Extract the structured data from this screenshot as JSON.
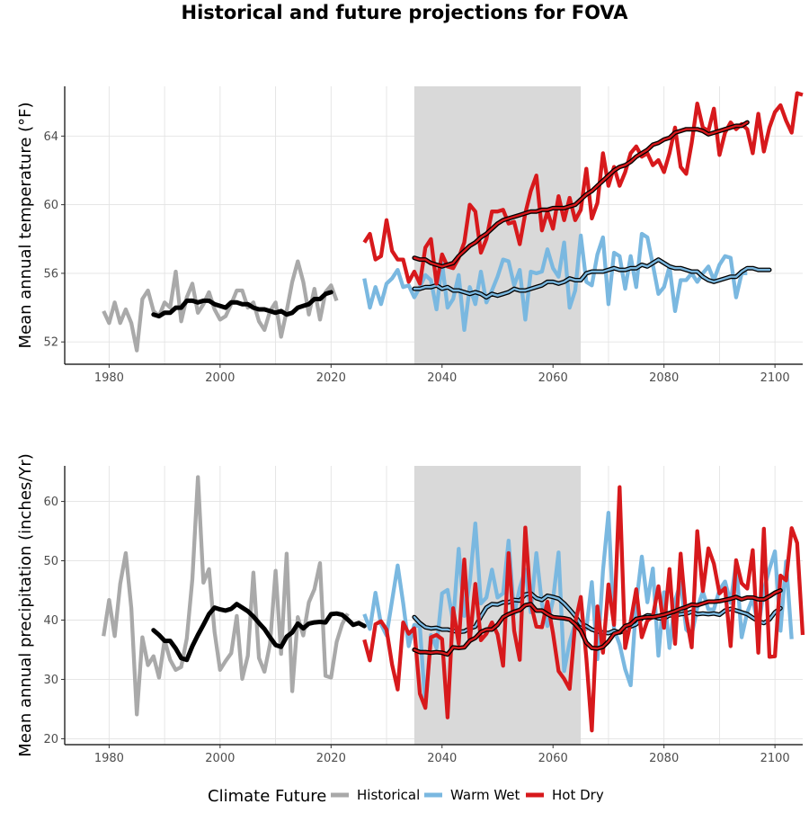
{
  "title": "Historical and future projections for FOVA",
  "legend": {
    "title": "Climate Future",
    "items": [
      {
        "label": "Historical",
        "color": "#a9a9a9"
      },
      {
        "label": "Warm Wet",
        "color": "#7ab8e0"
      },
      {
        "label": "Hot Dry",
        "color": "#d7191c"
      }
    ]
  },
  "chart_data": [
    {
      "type": "line",
      "ylabel": "Mean annual temperature (°F)",
      "xlim": [
        1972,
        2105
      ],
      "ylim": [
        50.7,
        66.9
      ],
      "xticks": [
        1980,
        2000,
        2020,
        2040,
        2060,
        2080,
        2100
      ],
      "yticks": [
        52,
        56,
        60,
        64
      ],
      "grid": true,
      "shaded_period": [
        2035,
        2065
      ],
      "series": [
        {
          "name": "Historical",
          "color": "#a9a9a9",
          "x_start": 1979,
          "values": [
            53.8,
            53.1,
            54.3,
            53.1,
            53.9,
            53.1,
            51.5,
            54.5,
            55.0,
            53.8,
            53.5,
            54.3,
            54.0,
            56.1,
            53.2,
            54.6,
            55.4,
            53.7,
            54.2,
            54.9,
            53.9,
            53.3,
            53.5,
            54.2,
            55.0,
            55.0,
            54.0,
            54.3,
            53.2,
            52.7,
            53.8,
            54.3,
            52.3,
            53.8,
            55.5,
            56.7,
            55.5,
            53.6,
            55.1,
            53.3,
            54.9,
            55.3,
            54.4
          ]
        },
        {
          "name": "Historical (smoothed)",
          "color": "#000000",
          "smoothed": true,
          "x_start": 1988,
          "values": [
            53.6,
            53.5,
            53.7,
            53.7,
            54.0,
            54.0,
            54.4,
            54.4,
            54.3,
            54.4,
            54.4,
            54.2,
            54.1,
            54.0,
            54.3,
            54.3,
            54.2,
            54.2,
            54.0,
            53.9,
            53.9,
            53.8,
            53.7,
            53.8,
            53.6,
            53.7,
            54.0,
            54.1,
            54.2,
            54.5,
            54.5,
            54.8,
            54.9
          ]
        },
        {
          "name": "Warm Wet",
          "color": "#7ab8e0",
          "x_start": 2026,
          "values": [
            55.7,
            54.0,
            55.2,
            54.2,
            55.4,
            55.7,
            56.2,
            55.2,
            55.3,
            54.6,
            55.2,
            55.9,
            55.6,
            53.9,
            56.6,
            54.0,
            54.5,
            55.9,
            52.7,
            55.2,
            54.2,
            56.1,
            54.3,
            55.0,
            55.8,
            56.8,
            56.7,
            55.3,
            56.2,
            53.3,
            56.1,
            56.0,
            56.1,
            57.4,
            56.3,
            55.8,
            57.8,
            54.0,
            55.0,
            58.2,
            55.5,
            55.3,
            57.1,
            58.1,
            54.2,
            57.2,
            57.0,
            55.1,
            57.0,
            55.2,
            58.3,
            58.1,
            56.5,
            54.8,
            55.2,
            56.4,
            53.8,
            55.6,
            55.6,
            56.0,
            55.5,
            56.0,
            56.4,
            55.6,
            56.5,
            57.0,
            56.9,
            54.6,
            56.0,
            56.0
          ]
        },
        {
          "name": "Warm Wet (smoothed)",
          "color": "#7ab8e0",
          "smoothed": true,
          "x_start": 2035,
          "values": [
            55.1,
            55.1,
            55.2,
            55.2,
            55.3,
            55.1,
            55.2,
            55.0,
            55.0,
            54.9,
            54.8,
            54.9,
            54.8,
            54.6,
            54.8,
            54.7,
            54.8,
            54.9,
            55.1,
            55.0,
            55.0,
            55.1,
            55.2,
            55.3,
            55.5,
            55.5,
            55.4,
            55.5,
            55.7,
            55.6,
            55.6,
            56.0,
            56.1,
            56.1,
            56.1,
            56.2,
            56.3,
            56.2,
            56.2,
            56.3,
            56.3,
            56.5,
            56.4,
            56.6,
            56.8,
            56.6,
            56.4,
            56.3,
            56.3,
            56.2,
            56.1,
            56.1,
            55.8,
            55.6,
            55.5,
            55.6,
            55.7,
            55.8,
            55.8,
            56.1,
            56.3,
            56.3,
            56.2,
            56.2,
            56.2
          ]
        },
        {
          "name": "Hot Dry",
          "color": "#d7191c",
          "x_start": 2026,
          "values": [
            57.8,
            58.3,
            56.8,
            57.0,
            59.1,
            57.3,
            56.8,
            56.8,
            55.5,
            56.1,
            55.4,
            57.5,
            58.0,
            55.4,
            57.1,
            56.4,
            56.3,
            56.9,
            57.8,
            60.0,
            59.6,
            57.2,
            58.0,
            59.6,
            59.6,
            59.7,
            58.9,
            59.0,
            57.7,
            59.5,
            60.8,
            61.7,
            58.5,
            59.6,
            58.6,
            60.5,
            59.1,
            60.4,
            59.1,
            59.7,
            62.1,
            59.2,
            60.1,
            63.0,
            61.1,
            62.2,
            61.1,
            61.9,
            63.0,
            63.4,
            62.8,
            63.0,
            62.3,
            62.6,
            61.9,
            63.0,
            64.5,
            62.2,
            61.8,
            63.6,
            65.9,
            64.5,
            64.3,
            65.6,
            62.9,
            64.2,
            64.8,
            64.4,
            64.7,
            64.4,
            63.0,
            65.3,
            63.1,
            64.5,
            65.4,
            65.8,
            64.9,
            64.2,
            66.5,
            66.4
          ]
        },
        {
          "name": "Hot Dry (smoothed)",
          "color": "#d7191c",
          "smoothed": true,
          "x_start": 2035,
          "values": [
            56.9,
            56.8,
            56.8,
            56.6,
            56.5,
            56.4,
            56.5,
            56.6,
            57.0,
            57.3,
            57.6,
            57.8,
            58.1,
            58.3,
            58.6,
            58.9,
            59.1,
            59.2,
            59.3,
            59.4,
            59.5,
            59.6,
            59.6,
            59.7,
            59.7,
            59.8,
            59.8,
            59.8,
            59.9,
            60.0,
            60.3,
            60.6,
            60.8,
            61.1,
            61.4,
            61.7,
            62.0,
            62.2,
            62.3,
            62.5,
            62.8,
            63.0,
            63.2,
            63.5,
            63.6,
            63.8,
            63.9,
            64.2,
            64.3,
            64.4,
            64.4,
            64.4,
            64.3,
            64.1,
            64.2,
            64.3,
            64.4,
            64.5,
            64.6,
            64.6,
            64.8
          ]
        }
      ]
    },
    {
      "type": "line",
      "ylabel": "Mean annual precipitation (inches/Yr)",
      "xlim": [
        1972,
        2105
      ],
      "ylim": [
        19,
        66
      ],
      "xticks": [
        1980,
        2000,
        2020,
        2040,
        2060,
        2080,
        2100
      ],
      "yticks": [
        20,
        30,
        40,
        50,
        60
      ],
      "grid": true,
      "shaded_period": [
        2035,
        2065
      ],
      "series": [
        {
          "name": "Historical",
          "color": "#a9a9a9",
          "x_start": 1979,
          "values": [
            37.3,
            43.4,
            37.3,
            46.1,
            51.3,
            42.0,
            24.1,
            37.1,
            32.4,
            33.9,
            30.3,
            36.6,
            33.3,
            31.6,
            32.1,
            36.9,
            46.9,
            64.1,
            46.3,
            48.6,
            38.0,
            31.6,
            33.1,
            34.4,
            40.7,
            30.1,
            34.0,
            48.0,
            33.6,
            31.3,
            36.0,
            48.3,
            34.3,
            51.2,
            28.0,
            40.5,
            37.4,
            43.0,
            45.2,
            49.6,
            30.6,
            30.3,
            36.3,
            39.3,
            41.1
          ]
        },
        {
          "name": "Historical (smoothed)",
          "color": "#000000",
          "smoothed": true,
          "x_start": 1988,
          "values": [
            38.3,
            37.5,
            36.5,
            36.5,
            35.2,
            33.6,
            33.3,
            35.6,
            37.5,
            39.2,
            41.0,
            42.1,
            41.8,
            41.6,
            41.9,
            42.7,
            42.1,
            41.5,
            40.6,
            39.5,
            38.5,
            37.1,
            35.8,
            35.5,
            37.2,
            37.9,
            39.4,
            38.6,
            39.4,
            39.6,
            39.7,
            39.6,
            41.0,
            41.1,
            40.9,
            40.1,
            39.2,
            39.5,
            39.0
          ]
        },
        {
          "name": "Warm Wet",
          "color": "#7ab8e0",
          "x_start": 2026,
          "values": [
            41.0,
            38.5,
            44.6,
            39.3,
            37.4,
            43.3,
            49.2,
            42.9,
            35.6,
            39.2,
            38.9,
            25.4,
            37.5,
            35.3,
            44.5,
            45.1,
            39.7,
            52.0,
            40.7,
            46.3,
            56.3,
            42.8,
            43.8,
            48.5,
            43.8,
            44.5,
            53.4,
            41.0,
            45.4,
            48.5,
            41.3,
            51.3,
            42.7,
            39.0,
            43.4,
            51.4,
            31.4,
            36.3,
            39.5,
            39.0,
            38.5,
            46.4,
            33.4,
            48.3,
            58.1,
            38.5,
            35.9,
            31.7,
            29.0,
            42.8,
            50.7,
            43.0,
            48.7,
            34.0,
            44.7,
            35.3,
            43.3,
            46.3,
            38.4,
            37.5,
            42.0,
            44.8,
            41.8,
            41.8,
            45.1,
            46.5,
            42.9,
            49.7,
            37.1,
            41.3,
            43.7,
            38.7,
            45.1,
            48.6,
            51.6,
            38.2,
            49.9,
            36.8
          ]
        },
        {
          "name": "Warm Wet (smoothed)",
          "color": "#7ab8e0",
          "smoothed": true,
          "x_start": 2035,
          "values": [
            40.5,
            39.5,
            38.8,
            38.6,
            38.7,
            38.4,
            38.4,
            38.2,
            38.0,
            38.1,
            38.6,
            38.9,
            40.6,
            42.1,
            42.7,
            42.6,
            43.0,
            43.0,
            43.4,
            43.3,
            44.3,
            44.5,
            43.7,
            43.4,
            44.1,
            43.9,
            43.6,
            42.8,
            41.8,
            40.7,
            39.3,
            39.0,
            38.4,
            38.1,
            37.9,
            37.8,
            38.2,
            37.9,
            38.3,
            38.9,
            39.3,
            40.3,
            40.8,
            40.7,
            40.3,
            40.3,
            40.8,
            40.8,
            41.0,
            41.1,
            41.4,
            41.0,
            41.1,
            41.0,
            41.1,
            40.9,
            41.6,
            41.9,
            41.6,
            41.3,
            41.0,
            40.4,
            39.8,
            39.5,
            40.1,
            41.3,
            42.0
          ]
        },
        {
          "name": "Hot Dry",
          "color": "#d7191c",
          "x_start": 2026,
          "values": [
            36.7,
            33.2,
            39.3,
            39.8,
            38.4,
            32.5,
            28.3,
            39.6,
            37.7,
            38.6,
            27.6,
            25.2,
            37.1,
            37.5,
            36.8,
            23.6,
            42.0,
            36.0,
            50.2,
            36.4,
            46.1,
            36.6,
            37.7,
            39.6,
            37.6,
            32.3,
            51.3,
            38.2,
            33.3,
            55.6,
            42.8,
            38.9,
            38.8,
            43.1,
            37.8,
            31.4,
            30.1,
            28.4,
            39.5,
            43.9,
            33.6,
            21.4,
            42.3,
            34.5,
            46.0,
            39.2,
            62.4,
            35.3,
            39.7,
            45.2,
            37.1,
            39.9,
            40.6,
            45.7,
            38.7,
            48.6,
            36.0,
            51.2,
            40.6,
            35.4,
            55.0,
            44.9,
            52.1,
            49.5,
            44.5,
            45.4,
            35.6,
            50.1,
            46.2,
            45.3,
            51.8,
            34.5,
            55.4,
            33.8,
            33.9,
            47.5,
            46.7,
            55.5,
            53.0,
            37.5
          ]
        },
        {
          "name": "Hot Dry (smoothed)",
          "color": "#d7191c",
          "smoothed": true,
          "x_start": 2035,
          "values": [
            35.0,
            34.6,
            34.6,
            34.5,
            34.6,
            34.5,
            34.2,
            35.4,
            35.3,
            35.4,
            36.5,
            37.0,
            38.0,
            38.4,
            38.4,
            39.2,
            40.5,
            41.0,
            41.4,
            41.7,
            42.5,
            42.7,
            41.6,
            41.6,
            41.0,
            40.5,
            40.4,
            40.3,
            40.1,
            39.3,
            38.2,
            36.2,
            35.3,
            35.2,
            35.5,
            36.4,
            37.7,
            38.0,
            39.0,
            39.3,
            40.2,
            40.4,
            40.5,
            40.5,
            40.7,
            40.9,
            41.2,
            41.5,
            41.9,
            42.2,
            42.6,
            42.5,
            42.8,
            43.1,
            43.1,
            43.2,
            43.4,
            43.6,
            43.9,
            43.5,
            43.8,
            43.8,
            43.5,
            43.5,
            44.0,
            44.6,
            45.0
          ]
        }
      ]
    }
  ]
}
